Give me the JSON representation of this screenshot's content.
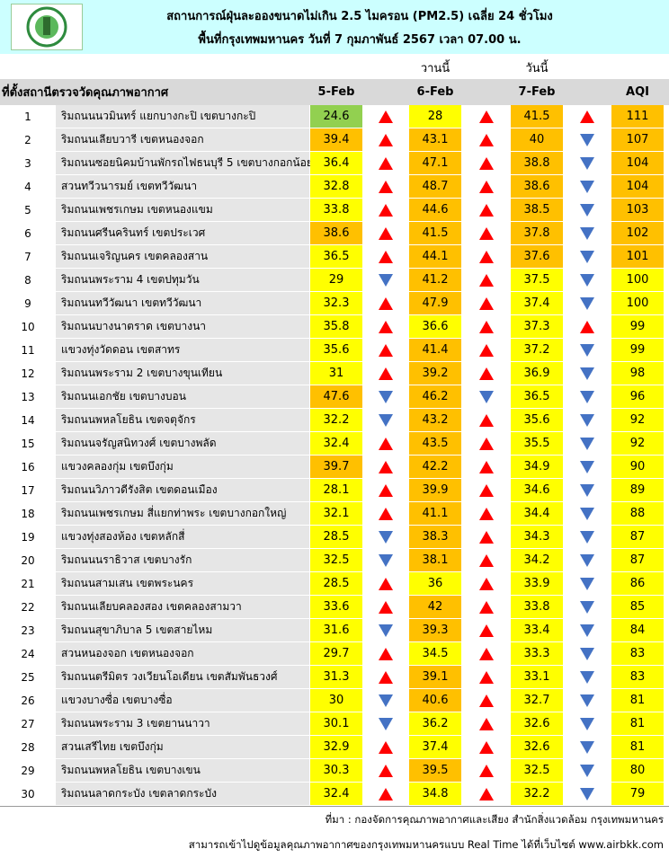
{
  "header": {
    "title": "สถานการณ์ฝุ่นละอองขนาดไม่เกิน 2.5 ไมครอน (PM2.5) เฉลี่ย 24 ชั่วโมง",
    "subtitle": "พื้นที่กรุงเทพมหานคร วันที่ 7 กุมภาพันธ์ 2567 เวลา 07.00 น."
  },
  "table": {
    "day_labels": [
      "วานนี้",
      "วันนี้"
    ],
    "columns": [
      "ที่ตั้งสถานีตรวจวัดคุณภาพอากาศ",
      "5-Feb",
      "6-Feb",
      "7-Feb",
      "AQI"
    ],
    "palette": {
      "g": "#92d050",
      "y": "#ffff00",
      "o": "#ffc000",
      "up": "#ff0000",
      "down": "#4472c4"
    },
    "rows": [
      {
        "no": 1,
        "station": "ริมถนนนวมินทร์ แยกบางกะปิ เขตบางกะปิ",
        "pm": [
          24.6,
          28,
          41.5
        ],
        "aqi": 111,
        "trend": [
          "up",
          "up",
          "up"
        ],
        "shade": [
          "g",
          "y",
          "o",
          "o"
        ]
      },
      {
        "no": 2,
        "station": "ริมถนนเลียบวารี เขตหนองจอก",
        "pm": [
          39.4,
          43.1,
          40
        ],
        "aqi": 107,
        "trend": [
          "up",
          "up",
          "down"
        ],
        "shade": [
          "o",
          "o",
          "o",
          "o"
        ]
      },
      {
        "no": 3,
        "station": "ริมถนนซอยนิคมบ้านพักรถไฟธนบุรี 5 เขตบางกอกน้อย",
        "pm": [
          36.4,
          47.1,
          38.8
        ],
        "aqi": 104,
        "trend": [
          "up",
          "up",
          "down"
        ],
        "shade": [
          "y",
          "o",
          "o",
          "o"
        ]
      },
      {
        "no": 4,
        "station": "สวนทวีวนารมย์ เขตทวีวัฒนา",
        "pm": [
          32.8,
          48.7,
          38.6
        ],
        "aqi": 104,
        "trend": [
          "up",
          "up",
          "down"
        ],
        "shade": [
          "y",
          "o",
          "o",
          "o"
        ]
      },
      {
        "no": 5,
        "station": "ริมถนนเพชรเกษม เขตหนองแขม",
        "pm": [
          33.8,
          44.6,
          38.5
        ],
        "aqi": 103,
        "trend": [
          "up",
          "up",
          "down"
        ],
        "shade": [
          "y",
          "o",
          "o",
          "o"
        ]
      },
      {
        "no": 6,
        "station": "ริมถนนศรีนครินทร์ เขตประเวศ",
        "pm": [
          38.6,
          41.5,
          37.8
        ],
        "aqi": 102,
        "trend": [
          "up",
          "up",
          "down"
        ],
        "shade": [
          "o",
          "o",
          "o",
          "o"
        ]
      },
      {
        "no": 7,
        "station": "ริมถนนเจริญนคร เขตคลองสาน",
        "pm": [
          36.5,
          44.1,
          37.6
        ],
        "aqi": 101,
        "trend": [
          "up",
          "up",
          "down"
        ],
        "shade": [
          "y",
          "o",
          "o",
          "o"
        ]
      },
      {
        "no": 8,
        "station": "ริมถนนพระราม 4 เขตปทุมวัน",
        "pm": [
          29,
          41.2,
          37.5
        ],
        "aqi": 100,
        "trend": [
          "down",
          "up",
          "down"
        ],
        "shade": [
          "y",
          "o",
          "y",
          "y"
        ]
      },
      {
        "no": 9,
        "station": "ริมถนนทวีวัฒนา เขตทวีวัฒนา",
        "pm": [
          32.3,
          47.9,
          37.4
        ],
        "aqi": 100,
        "trend": [
          "up",
          "up",
          "down"
        ],
        "shade": [
          "y",
          "o",
          "y",
          "y"
        ]
      },
      {
        "no": 10,
        "station": "ริมถนนบางนาตราด เขตบางนา",
        "pm": [
          35.8,
          36.6,
          37.3
        ],
        "aqi": 99,
        "trend": [
          "up",
          "up",
          "up"
        ],
        "shade": [
          "y",
          "y",
          "y",
          "y"
        ]
      },
      {
        "no": 11,
        "station": "แขวงทุ่งวัดดอน เขตสาทร",
        "pm": [
          35.6,
          41.4,
          37.2
        ],
        "aqi": 99,
        "trend": [
          "up",
          "up",
          "down"
        ],
        "shade": [
          "y",
          "o",
          "y",
          "y"
        ]
      },
      {
        "no": 12,
        "station": "ริมถนนพระราม 2 เขตบางขุนเทียน",
        "pm": [
          31,
          39.2,
          36.9
        ],
        "aqi": 98,
        "trend": [
          "up",
          "up",
          "down"
        ],
        "shade": [
          "y",
          "o",
          "y",
          "y"
        ]
      },
      {
        "no": 13,
        "station": "ริมถนนเอกชัย เขตบางบอน",
        "pm": [
          47.6,
          46.2,
          36.5
        ],
        "aqi": 96,
        "trend": [
          "down",
          "down",
          "down"
        ],
        "shade": [
          "o",
          "o",
          "y",
          "y"
        ]
      },
      {
        "no": 14,
        "station": "ริมถนนพหลโยธิน เขตจตุจักร",
        "pm": [
          32.2,
          43.2,
          35.6
        ],
        "aqi": 92,
        "trend": [
          "down",
          "up",
          "down"
        ],
        "shade": [
          "y",
          "o",
          "y",
          "y"
        ]
      },
      {
        "no": 15,
        "station": "ริมถนนจรัญสนิทวงศ์ เขตบางพลัด",
        "pm": [
          32.4,
          43.5,
          35.5
        ],
        "aqi": 92,
        "trend": [
          "up",
          "up",
          "down"
        ],
        "shade": [
          "y",
          "o",
          "y",
          "y"
        ]
      },
      {
        "no": 16,
        "station": "แขวงคลองกุ่ม เขตบึงกุ่ม",
        "pm": [
          39.7,
          42.2,
          34.9
        ],
        "aqi": 90,
        "trend": [
          "up",
          "up",
          "down"
        ],
        "shade": [
          "o",
          "o",
          "y",
          "y"
        ]
      },
      {
        "no": 17,
        "station": "ริมถนนวิภาวดีรังสิต เขตดอนเมือง",
        "pm": [
          28.1,
          39.9,
          34.6
        ],
        "aqi": 89,
        "trend": [
          "up",
          "up",
          "down"
        ],
        "shade": [
          "y",
          "o",
          "y",
          "y"
        ]
      },
      {
        "no": 18,
        "station": "ริมถนนเพชรเกษม สี่แยกท่าพระ เขตบางกอกใหญ่",
        "pm": [
          32.1,
          41.1,
          34.4
        ],
        "aqi": 88,
        "trend": [
          "up",
          "up",
          "down"
        ],
        "shade": [
          "y",
          "o",
          "y",
          "y"
        ]
      },
      {
        "no": 19,
        "station": "แขวงทุ่งสองห้อง เขตหลักสี่",
        "pm": [
          28.5,
          38.3,
          34.3
        ],
        "aqi": 87,
        "trend": [
          "down",
          "up",
          "down"
        ],
        "shade": [
          "y",
          "o",
          "y",
          "y"
        ]
      },
      {
        "no": 20,
        "station": "ริมถนนนราธิวาส เขตบางรัก",
        "pm": [
          32.5,
          38.1,
          34.2
        ],
        "aqi": 87,
        "trend": [
          "down",
          "up",
          "down"
        ],
        "shade": [
          "y",
          "o",
          "y",
          "y"
        ]
      },
      {
        "no": 21,
        "station": "ริมถนนสามเสน เขตพระนคร",
        "pm": [
          28.5,
          36,
          33.9
        ],
        "aqi": 86,
        "trend": [
          "up",
          "up",
          "down"
        ],
        "shade": [
          "y",
          "y",
          "y",
          "y"
        ]
      },
      {
        "no": 22,
        "station": "ริมถนนเลียบคลองสอง เขตคลองสามวา",
        "pm": [
          33.6,
          42,
          33.8
        ],
        "aqi": 85,
        "trend": [
          "up",
          "up",
          "down"
        ],
        "shade": [
          "y",
          "o",
          "y",
          "y"
        ]
      },
      {
        "no": 23,
        "station": "ริมถนนสุขาภิบาล 5 เขตสายไหม",
        "pm": [
          31.6,
          39.3,
          33.4
        ],
        "aqi": 84,
        "trend": [
          "down",
          "up",
          "down"
        ],
        "shade": [
          "y",
          "o",
          "y",
          "y"
        ]
      },
      {
        "no": 24,
        "station": "สวนหนองจอก เขตหนองจอก",
        "pm": [
          29.7,
          34.5,
          33.3
        ],
        "aqi": 83,
        "trend": [
          "up",
          "up",
          "down"
        ],
        "shade": [
          "y",
          "y",
          "y",
          "y"
        ]
      },
      {
        "no": 25,
        "station": "ริมถนนตรีมิตร วงเวียนโอเดียน เขตสัมพันธวงศ์",
        "pm": [
          31.3,
          39.1,
          33.1
        ],
        "aqi": 83,
        "trend": [
          "up",
          "up",
          "down"
        ],
        "shade": [
          "y",
          "o",
          "y",
          "y"
        ]
      },
      {
        "no": 26,
        "station": "แขวงบางซื่อ เขตบางซื่อ",
        "pm": [
          30,
          40.6,
          32.7
        ],
        "aqi": 81,
        "trend": [
          "down",
          "up",
          "down"
        ],
        "shade": [
          "y",
          "o",
          "y",
          "y"
        ]
      },
      {
        "no": 27,
        "station": "ริมถนนพระราม 3 เขตยานนาวา",
        "pm": [
          30.1,
          36.2,
          32.6
        ],
        "aqi": 81,
        "trend": [
          "down",
          "up",
          "down"
        ],
        "shade": [
          "y",
          "y",
          "y",
          "y"
        ]
      },
      {
        "no": 28,
        "station": "สวนเสรีไทย เขตบึงกุ่ม",
        "pm": [
          32.9,
          37.4,
          32.6
        ],
        "aqi": 81,
        "trend": [
          "up",
          "up",
          "down"
        ],
        "shade": [
          "y",
          "y",
          "y",
          "y"
        ]
      },
      {
        "no": 29,
        "station": "ริมถนนพหลโยธิน เขตบางเขน",
        "pm": [
          30.3,
          39.5,
          32.5
        ],
        "aqi": 80,
        "trend": [
          "up",
          "up",
          "down"
        ],
        "shade": [
          "y",
          "o",
          "y",
          "y"
        ]
      },
      {
        "no": 30,
        "station": "ริมถนนลาดกระบัง เขตลาดกระบัง",
        "pm": [
          32.4,
          34.8,
          32.2
        ],
        "aqi": 79,
        "trend": [
          "up",
          "up",
          "down"
        ],
        "shade": [
          "y",
          "y",
          "y",
          "y"
        ]
      }
    ]
  },
  "footer": {
    "source": "ที่มา : กองจัดการคุณภาพอากาศและเสียง สำนักสิ่งแวดล้อม กรุงเทพมหานคร",
    "link": "สามารถเข้าไปดูข้อมูลคุณภาพอากาศของกรุงเทพมหานครแบบ Real Time ได้ที่เว็บไซต์ www.airbkk.com"
  }
}
